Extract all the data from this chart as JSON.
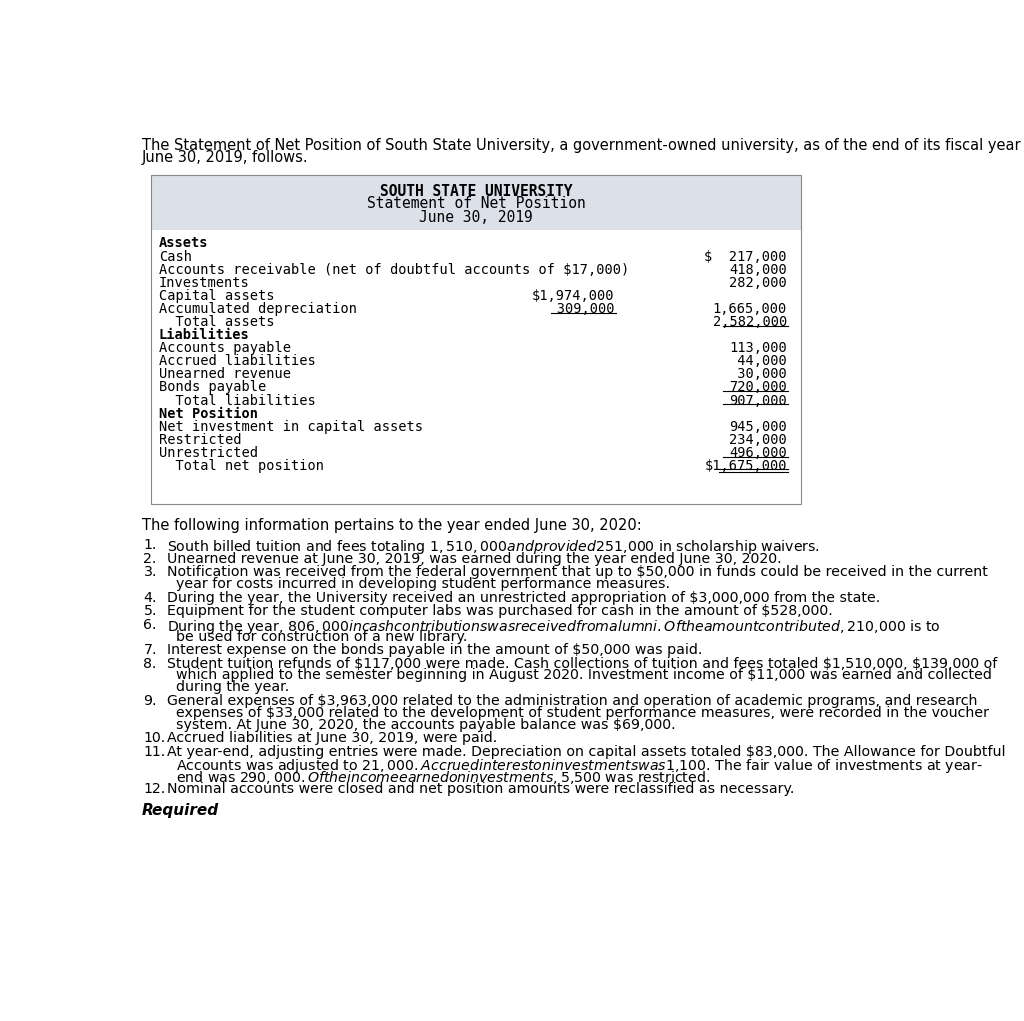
{
  "intro_line1": "The Statement of Net Position of South State University, a government-owned university, as of the end of its fiscal year",
  "intro_line2": "June 30, 2019, follows.",
  "table_title_line1": "SOUTH STATE UNIVERSITY",
  "table_title_line2": "Statement of Net Position",
  "table_title_line3": "June 30, 2019",
  "table_bg_color": "#dce0e8",
  "body_bg_color": "#ffffff",
  "following_text": "The following information pertains to the year ended June 30, 2020:",
  "required_text": "Required",
  "monospace_font": "DejaVu Sans Mono",
  "body_font": "DejaVu Sans",
  "items": [
    [
      "1.",
      "South billed tuition and fees totaling $1,510,000 and provided $251,000 in scholarship waivers."
    ],
    [
      "2.",
      "Unearned revenue at June 30, 2019, was earned during the year ended June 30, 2020."
    ],
    [
      "3.",
      "Notification was received from the federal government that up to $50,000 in funds could be received in the current",
      "year for costs incurred in developing student performance measures."
    ],
    [
      "4.",
      "During the year, the University received an unrestricted appropriation of $3,000,000 from the state."
    ],
    [
      "5.",
      "Equipment for the student computer labs was purchased for cash in the amount of $528,000."
    ],
    [
      "6.",
      "During the year, $806,000 in cash contributions was received from alumni. Of the amount contributed, $210,000 is to",
      "be used for construction of a new library."
    ],
    [
      "7.",
      "Interest expense on the bonds payable in the amount of $50,000 was paid."
    ],
    [
      "8.",
      "Student tuition refunds of $117,000 were made. Cash collections of tuition and fees totaled $1,510,000, $139,000 of",
      "which applied to the semester beginning in August 2020. Investment income of $11,000 was earned and collected",
      "during the year."
    ],
    [
      "9.",
      "General expenses of $3,963,000 related to the administration and operation of academic programs, and research",
      "expenses of $33,000 related to the development of student performance measures, were recorded in the voucher",
      "system. At June 30, 2020, the accounts payable balance was $69,000."
    ],
    [
      "10.",
      "Accrued liabilities at June 30, 2019, were paid."
    ],
    [
      "11.",
      "At year-end, adjusting entries were made. Depreciation on capital assets totaled $83,000. The Allowance for Doubtful",
      "Accounts was adjusted to $21,000. Accrued interest on investments was $1,100. The fair value of investments at year-",
      "end was $290,000. Of the income earned on investments, $5,500 was restricted."
    ],
    [
      "12.",
      "Nominal accounts were closed and net position amounts were reclassified as necessary."
    ]
  ]
}
